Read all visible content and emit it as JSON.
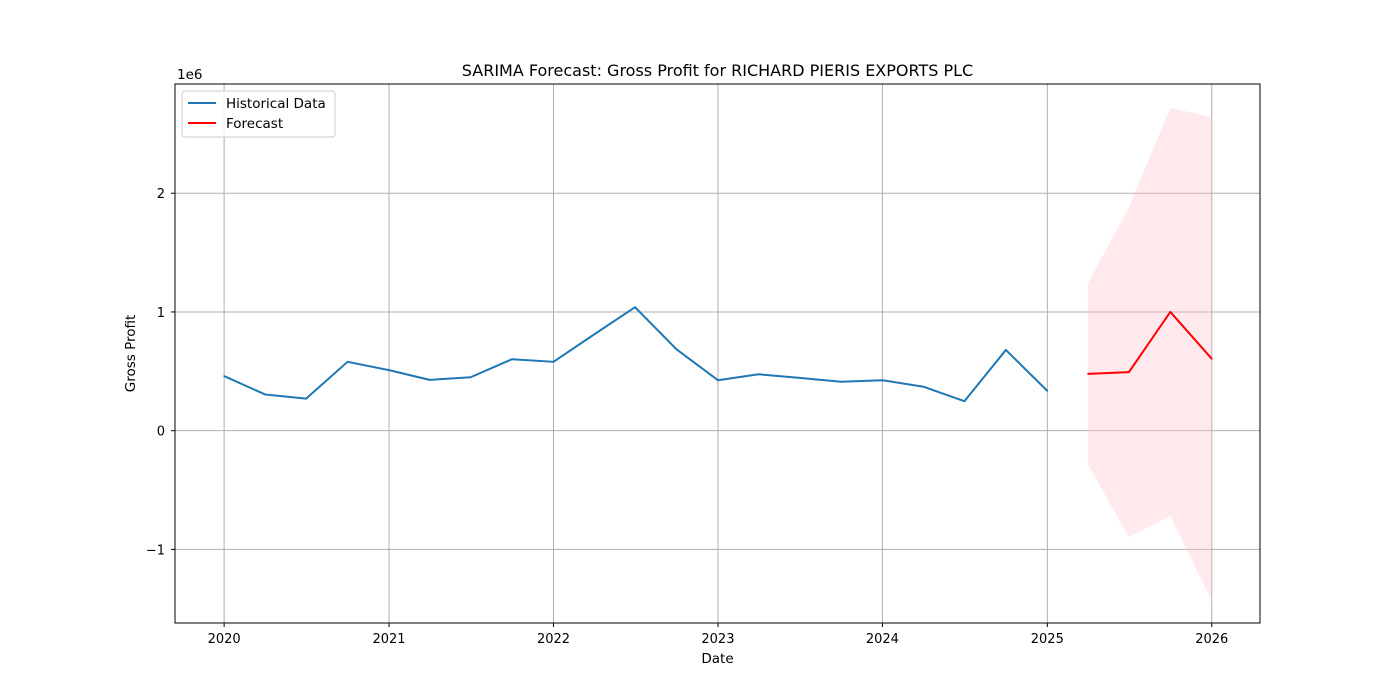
{
  "chart_data": {
    "type": "line",
    "title": "SARIMA Forecast: Gross Profit for RICHARD PIERIS EXPORTS PLC",
    "xlabel": "Date",
    "ylabel": "Gross Profit",
    "y_offset_text": "1e6",
    "y_scale": 1000000,
    "xlim": [
      "2019-09-14",
      "2026-04-18"
    ],
    "ylim": [
      -1620000,
      2920000
    ],
    "x_ticks": [
      "2020",
      "2021",
      "2022",
      "2023",
      "2024",
      "2025",
      "2026"
    ],
    "y_ticks": [
      -1,
      0,
      1,
      2
    ],
    "y_tick_labels": [
      "−1",
      "0",
      "1",
      "2"
    ],
    "grid": true,
    "legend": "upper-left",
    "series": [
      {
        "name": "Historical Data",
        "color": "#1f77b4",
        "points": [
          {
            "x": "2020-01-01",
            "y": 460000
          },
          {
            "x": "2020-04-01",
            "y": 305000
          },
          {
            "x": "2020-07-01",
            "y": 270000
          },
          {
            "x": "2020-10-01",
            "y": 580000
          },
          {
            "x": "2021-01-01",
            "y": 510000
          },
          {
            "x": "2021-04-01",
            "y": 428000
          },
          {
            "x": "2021-07-01",
            "y": 450000
          },
          {
            "x": "2021-10-01",
            "y": 602000
          },
          {
            "x": "2022-01-01",
            "y": 580000
          },
          {
            "x": "2022-04-01",
            "y": 810000
          },
          {
            "x": "2022-07-01",
            "y": 1040000
          },
          {
            "x": "2022-10-01",
            "y": 685000
          },
          {
            "x": "2023-01-01",
            "y": 425000
          },
          {
            "x": "2023-04-01",
            "y": 475000
          },
          {
            "x": "2023-07-01",
            "y": 445000
          },
          {
            "x": "2023-10-01",
            "y": 412000
          },
          {
            "x": "2024-01-01",
            "y": 425000
          },
          {
            "x": "2024-04-01",
            "y": 370000
          },
          {
            "x": "2024-07-01",
            "y": 248000
          },
          {
            "x": "2024-10-01",
            "y": 680000
          },
          {
            "x": "2025-01-01",
            "y": 335000
          }
        ]
      },
      {
        "name": "Forecast",
        "color": "#ff0000",
        "points": [
          {
            "x": "2025-04-01",
            "y": 478000
          },
          {
            "x": "2025-07-01",
            "y": 493000
          },
          {
            "x": "2025-10-01",
            "y": 1000000
          },
          {
            "x": "2026-01-01",
            "y": 605000
          }
        ]
      }
    ],
    "confidence_interval": {
      "color": "#ffc0cb",
      "points": [
        {
          "x": "2025-04-01",
          "lower": -285000,
          "upper": 1240000
        },
        {
          "x": "2025-07-01",
          "lower": -895000,
          "upper": 1880000
        },
        {
          "x": "2025-10-01",
          "lower": -720000,
          "upper": 2720000
        },
        {
          "x": "2026-01-01",
          "lower": -1430000,
          "upper": 2640000
        }
      ]
    }
  }
}
